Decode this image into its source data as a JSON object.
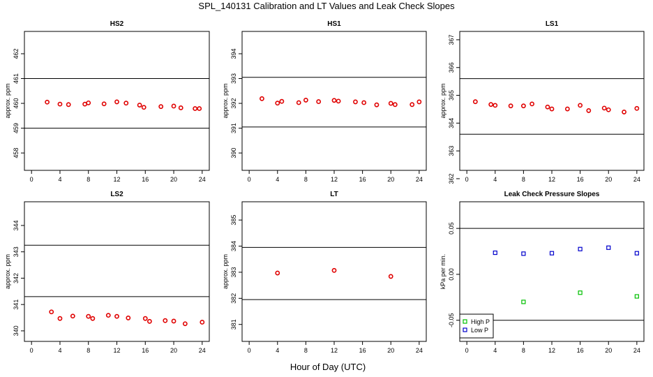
{
  "title": "SPL_140131  Calibration and LT Values and Leak Check Slopes",
  "xlabel": "Hour of Day (UTC)",
  "colors": {
    "red": "#e00000",
    "green": "#00c000",
    "blue": "#0000cc",
    "axis": "#000000"
  },
  "chart_data": [
    {
      "type": "scatter",
      "title": "HS2",
      "ylabel": "approx. ppm",
      "xlim": [
        -1,
        25
      ],
      "xticks": [
        0,
        4,
        8,
        12,
        16,
        20,
        24
      ],
      "ylim": [
        457.3,
        462.9
      ],
      "yticks": [
        458,
        459,
        460,
        461,
        462
      ],
      "hlines": [
        461.0,
        459.0
      ],
      "series": [
        {
          "color": "red",
          "marker": "circle",
          "x": [
            2.2,
            4.0,
            5.2,
            7.5,
            8.0,
            10.2,
            12.0,
            13.3,
            15.2,
            15.8,
            18.2,
            20.0,
            21.0,
            23.0,
            23.6
          ],
          "y": [
            460.05,
            459.97,
            459.95,
            459.97,
            460.02,
            459.98,
            460.06,
            460.01,
            459.93,
            459.84,
            459.87,
            459.89,
            459.82,
            459.79,
            459.79
          ]
        }
      ]
    },
    {
      "type": "scatter",
      "title": "HS1",
      "ylabel": "approx. ppm",
      "xlim": [
        -1,
        25
      ],
      "xticks": [
        0,
        4,
        8,
        12,
        16,
        20,
        24
      ],
      "ylim": [
        389.3,
        394.9
      ],
      "yticks": [
        390,
        391,
        392,
        393,
        394
      ],
      "hlines": [
        393.05,
        391.05
      ],
      "series": [
        {
          "color": "red",
          "marker": "circle",
          "x": [
            1.8,
            4.0,
            4.6,
            7.0,
            8.0,
            9.8,
            12.0,
            12.6,
            15.0,
            16.2,
            18.0,
            20.0,
            20.6,
            23.0,
            24.0
          ],
          "y": [
            392.19,
            392.01,
            392.08,
            392.03,
            392.13,
            392.07,
            392.12,
            392.09,
            392.06,
            392.03,
            391.94,
            392.0,
            391.95,
            391.95,
            392.06
          ]
        }
      ]
    },
    {
      "type": "scatter",
      "title": "LS1",
      "ylabel": "approx. ppm",
      "xlim": [
        -1,
        25
      ],
      "xticks": [
        0,
        4,
        8,
        12,
        16,
        20,
        24
      ],
      "ylim": [
        362.3,
        367.3
      ],
      "yticks": [
        362,
        363,
        364,
        365,
        366,
        367
      ],
      "hlines": [
        365.6,
        363.6
      ],
      "series": [
        {
          "color": "red",
          "marker": "circle",
          "x": [
            1.2,
            3.4,
            4.0,
            6.2,
            8.0,
            9.2,
            11.4,
            12.0,
            14.2,
            16.0,
            17.2,
            19.4,
            20.0,
            22.2,
            24.0
          ],
          "y": [
            364.77,
            364.67,
            364.64,
            364.62,
            364.62,
            364.69,
            364.58,
            364.51,
            364.51,
            364.64,
            364.45,
            364.54,
            364.48,
            364.4,
            364.53
          ]
        }
      ]
    },
    {
      "type": "scatter",
      "title": "LS2",
      "ylabel": "approx. ppm",
      "xlim": [
        -1,
        25
      ],
      "xticks": [
        0,
        4,
        8,
        12,
        16,
        20,
        24
      ],
      "ylim": [
        339.6,
        344.9
      ],
      "yticks": [
        340,
        341,
        342,
        343,
        344
      ],
      "hlines": [
        343.25,
        341.3
      ],
      "series": [
        {
          "color": "red",
          "marker": "circle",
          "x": [
            2.8,
            4.0,
            5.8,
            8.0,
            8.6,
            10.8,
            12.0,
            13.6,
            16.0,
            16.6,
            18.8,
            20.0,
            21.6,
            24.0
          ],
          "y": [
            340.72,
            340.47,
            340.56,
            340.55,
            340.47,
            340.59,
            340.55,
            340.49,
            340.47,
            340.36,
            340.39,
            340.37,
            340.27,
            340.33
          ]
        }
      ]
    },
    {
      "type": "scatter",
      "title": "LT",
      "ylabel": "approx. ppm",
      "xlim": [
        -1,
        25
      ],
      "xticks": [
        0,
        4,
        8,
        12,
        16,
        20,
        24
      ],
      "ylim": [
        380.35,
        385.7
      ],
      "yticks": [
        381,
        382,
        383,
        384,
        385
      ],
      "hlines": [
        383.95,
        381.95
      ],
      "series": [
        {
          "color": "red",
          "marker": "circle",
          "x": [
            4.0,
            12.0,
            20.0
          ],
          "y": [
            382.97,
            383.07,
            382.84
          ]
        }
      ]
    },
    {
      "type": "scatter",
      "title": "Leak Check Pressure Slopes",
      "ylabel": "kPa per min.",
      "xlim": [
        -1,
        25
      ],
      "xticks": [
        0,
        4,
        8,
        12,
        16,
        20,
        24
      ],
      "ylim": [
        -0.073,
        0.079
      ],
      "yticks": [
        -0.05,
        0.0,
        0.05
      ],
      "ytick_labels": [
        "-0.05",
        "0.00",
        "0.05"
      ],
      "hlines": [
        0.05,
        -0.05
      ],
      "legend": {
        "position": "bottom-left",
        "entries": [
          "High P",
          "Low P"
        ]
      },
      "series": [
        {
          "name": "High P",
          "color": "green",
          "marker": "square",
          "x": [
            8.0,
            16.0,
            24.0
          ],
          "y": [
            -0.03,
            -0.02,
            -0.024
          ]
        },
        {
          "name": "Low P",
          "color": "blue",
          "marker": "square",
          "x": [
            4.0,
            8.0,
            12.0,
            16.0,
            20.0,
            24.0
          ],
          "y": [
            0.0235,
            0.0225,
            0.023,
            0.0275,
            0.029,
            0.023
          ]
        }
      ]
    }
  ]
}
